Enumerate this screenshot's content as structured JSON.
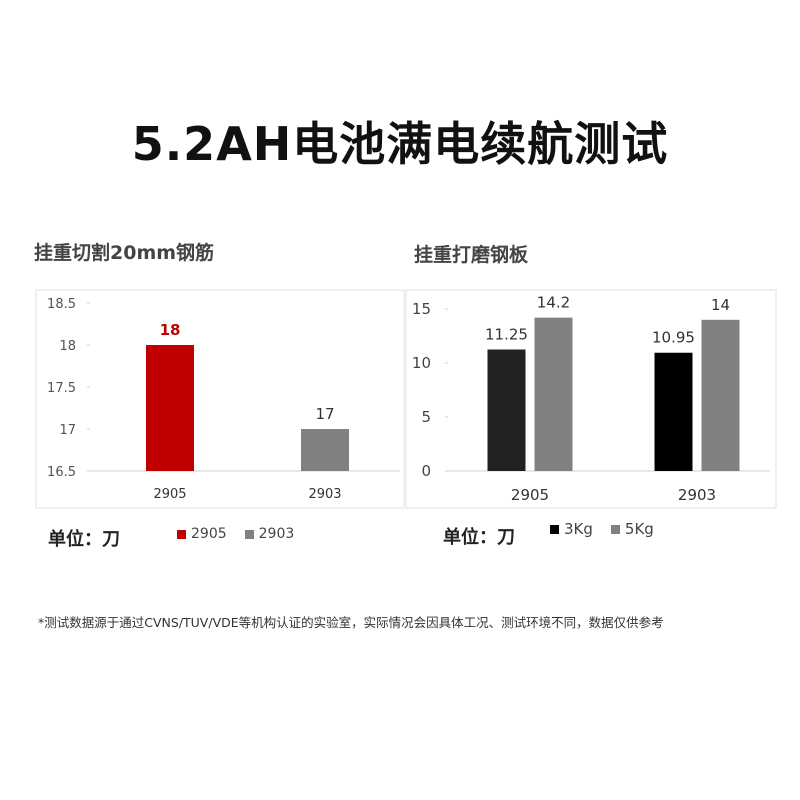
{
  "title": "5.2AH电池满电续航测试",
  "chart_data": [
    {
      "type": "bar",
      "title": "挂重切割20mm钢筋",
      "categories": [
        "2905",
        "2903"
      ],
      "series": [
        {
          "name": "2905",
          "values": [
            18,
            null
          ],
          "color": "#c00000"
        },
        {
          "name": "2903",
          "values": [
            null,
            17
          ],
          "color": "#808080"
        }
      ],
      "data_labels": [
        "18",
        "17"
      ],
      "label_colors": [
        "#c00000",
        "#333333"
      ],
      "yticks": [
        "18.5",
        "18",
        "17.5",
        "17",
        "16.5"
      ],
      "ylim": [
        16.5,
        18.5
      ],
      "grid": false,
      "legend": "bottom",
      "unit_label": "单位：刀"
    },
    {
      "type": "bar",
      "title": "挂重打磨钢板",
      "categories": [
        "2905",
        "2903"
      ],
      "series": [
        {
          "name": "3Kg",
          "values": [
            11.25,
            10.95
          ],
          "colors": [
            "#222222",
            "#000000"
          ]
        },
        {
          "name": "5Kg",
          "values": [
            14.2,
            14
          ],
          "color": "#808080"
        }
      ],
      "data_labels": [
        [
          "11.25",
          "10.95"
        ],
        [
          "14.2",
          "14"
        ]
      ],
      "yticks": [
        "15",
        "10",
        "5",
        "0"
      ],
      "ylim": [
        0,
        15
      ],
      "grid": false,
      "legend": "bottom",
      "unit_label": "单位：刀"
    }
  ],
  "footnote": "*测试数据源于通过CVNS/TUV/VDE等机构认证的实验室，实际情况会因具体工况、测试环境不同，数据仅供参考"
}
